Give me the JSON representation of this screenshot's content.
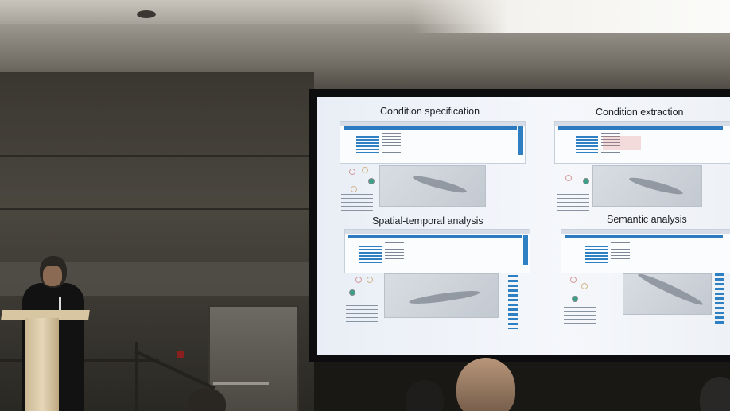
{
  "slide": {
    "quadrants": [
      {
        "title": "Condition specification"
      },
      {
        "title": "Condition extraction"
      },
      {
        "title": "Spatial-temporal analysis"
      },
      {
        "title": "Semantic analysis"
      }
    ]
  },
  "colors": {
    "accent": "#2f7fc3",
    "screen_bg": "#f5f7fb",
    "room_dark": "#1a1814"
  }
}
